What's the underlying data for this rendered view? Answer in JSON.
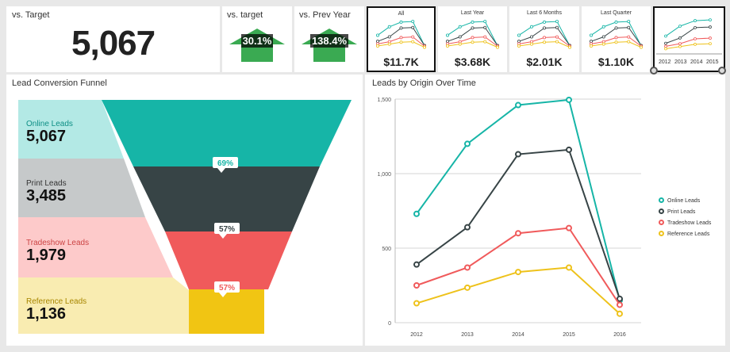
{
  "kpi_target": {
    "title": "vs. Target",
    "value": "5,067"
  },
  "kpi_vs_target": {
    "title": "vs. target",
    "value": "30.1%"
  },
  "kpi_vs_prev": {
    "title": "vs. Prev Year",
    "value": "138.4%"
  },
  "colors": {
    "online": "#16b5a7",
    "print": "#374446",
    "tradeshow": "#f05a5b",
    "reference": "#eec21b",
    "arrow": "#3aaa52"
  },
  "sparks": [
    {
      "label": "All",
      "value": "$11.7K",
      "selected": true
    },
    {
      "label": "Last Year",
      "value": "$3.68K",
      "selected": false
    },
    {
      "label": "Last 6 Months",
      "value": "$2.01K",
      "selected": false
    },
    {
      "label": "Last Quarter",
      "value": "$1.10K",
      "selected": false
    }
  ],
  "range_selector": {
    "years": [
      "2012",
      "2013",
      "2014",
      "2015"
    ]
  },
  "funnel": {
    "title": "Lead Conversion Funnel",
    "stages": [
      {
        "name": "Online Leads",
        "value": "5,067"
      },
      {
        "name": "Print Leads",
        "value": "3,485"
      },
      {
        "name": "Tradeshow Leads",
        "value": "1,979"
      },
      {
        "name": "Reference Leads",
        "value": "1,136"
      }
    ],
    "conversions": [
      "69%",
      "57%",
      "57%"
    ]
  },
  "chart_data": {
    "type": "line",
    "title": "Leads by Origin Over Time",
    "x": [
      "2012",
      "2013",
      "2014",
      "2015",
      "2016"
    ],
    "ylim": [
      0,
      1500
    ],
    "yticks": [
      "0",
      "500",
      "1,000",
      "1,500"
    ],
    "grid": true,
    "legend_position": "right",
    "series": [
      {
        "name": "Online Leads",
        "color": "#16b5a7",
        "values": [
          730,
          1200,
          1460,
          1495,
          150
        ]
      },
      {
        "name": "Print Leads",
        "color": "#374446",
        "values": [
          390,
          640,
          1130,
          1160,
          160
        ]
      },
      {
        "name": "Tradeshow Leads",
        "color": "#f05a5b",
        "values": [
          250,
          370,
          600,
          635,
          120
        ]
      },
      {
        "name": "Reference Leads",
        "color": "#eec21b",
        "values": [
          130,
          235,
          340,
          370,
          60
        ]
      }
    ]
  }
}
